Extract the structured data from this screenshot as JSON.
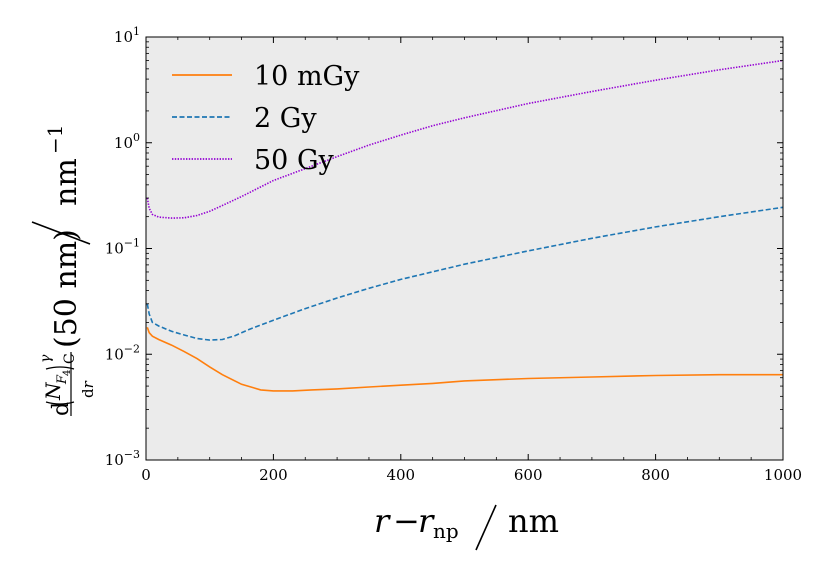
{
  "chart_data": {
    "type": "line",
    "xlabel": "r − r_np / nm",
    "ylabel": "d(N_F4)^γ_C(50 nm)/dr / nm^−1",
    "xlim": [
      0,
      1000
    ],
    "ylim": [
      0.001,
      10
    ],
    "yscale": "log",
    "grid": false,
    "legend_position": "top-left",
    "background": "#ebebeb",
    "x_ticks": [
      0,
      200,
      400,
      600,
      800,
      1000
    ],
    "y_ticks": [
      {
        "value": 0.001,
        "base": "10",
        "exp": "−3"
      },
      {
        "value": 0.01,
        "base": "10",
        "exp": "−2"
      },
      {
        "value": 0.1,
        "base": "10",
        "exp": "−1"
      },
      {
        "value": 1,
        "base": "10",
        "exp": "0"
      },
      {
        "value": 10,
        "base": "10",
        "exp": "1"
      }
    ],
    "series": [
      {
        "name": "10 mGy",
        "color": "#ff7f0e",
        "style": "solid",
        "x": [
          2,
          5,
          10,
          20,
          40,
          60,
          80,
          100,
          120,
          150,
          180,
          200,
          230,
          260,
          300,
          350,
          400,
          450,
          500,
          600,
          700,
          800,
          900,
          1000
        ],
        "y": [
          0.018,
          0.016,
          0.0148,
          0.0138,
          0.0122,
          0.0106,
          0.0091,
          0.0076,
          0.0064,
          0.0052,
          0.0046,
          0.0045,
          0.0045,
          0.0046,
          0.0047,
          0.0049,
          0.0051,
          0.0053,
          0.0056,
          0.0059,
          0.0061,
          0.0063,
          0.0064,
          0.0064
        ]
      },
      {
        "name": "2 Gy",
        "color": "#1f77b4",
        "style": "dashed",
        "x": [
          2,
          5,
          10,
          20,
          40,
          60,
          80,
          100,
          120,
          140,
          160,
          200,
          250,
          300,
          350,
          400,
          500,
          600,
          700,
          800,
          900,
          1000
        ],
        "y": [
          0.03,
          0.024,
          0.02,
          0.0185,
          0.0165,
          0.0152,
          0.0141,
          0.0136,
          0.0138,
          0.015,
          0.017,
          0.021,
          0.027,
          0.034,
          0.042,
          0.051,
          0.071,
          0.095,
          0.125,
          0.16,
          0.2,
          0.245
        ]
      },
      {
        "name": "50 Gy",
        "color": "#9400d3",
        "style": "dotted",
        "x": [
          2,
          5,
          10,
          20,
          40,
          60,
          80,
          100,
          120,
          150,
          200,
          250,
          300,
          350,
          400,
          450,
          500,
          600,
          700,
          800,
          900,
          1000
        ],
        "y": [
          0.3,
          0.24,
          0.21,
          0.198,
          0.194,
          0.195,
          0.205,
          0.225,
          0.255,
          0.31,
          0.44,
          0.57,
          0.74,
          0.95,
          1.18,
          1.45,
          1.72,
          2.35,
          3.05,
          3.9,
          4.9,
          6.0
        ]
      }
    ]
  }
}
